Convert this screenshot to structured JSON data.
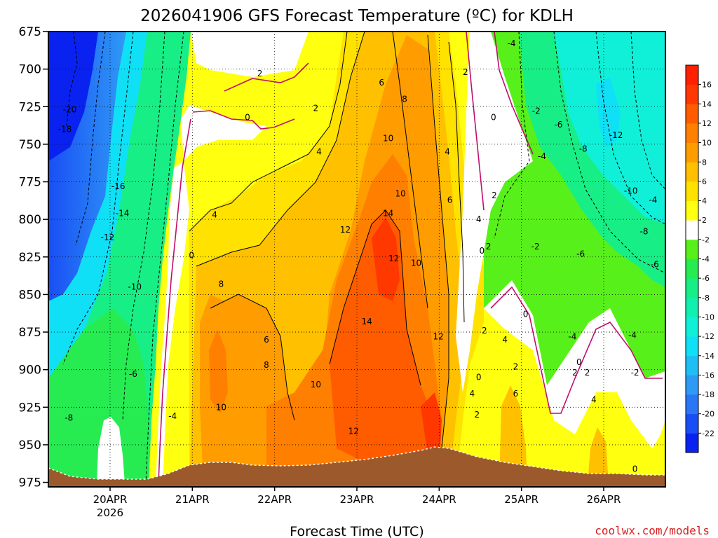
{
  "credit": "coolwx.com/models",
  "chart_data": {
    "type": "heatmap",
    "title": "2026041906 GFS Forecast Temperature (ºC) for KDLH",
    "xlabel": "Forecast Time (UTC)",
    "ylabel": "",
    "y_ticks": [
      675,
      700,
      725,
      750,
      775,
      800,
      825,
      850,
      875,
      900,
      925,
      950,
      975
    ],
    "ylim": [
      675,
      978
    ],
    "x_ticks": [
      {
        "day": 20,
        "label": "20APR",
        "sublabel": "2026"
      },
      {
        "day": 21,
        "label": "21APR",
        "sublabel": ""
      },
      {
        "day": 22,
        "label": "22APR",
        "sublabel": ""
      },
      {
        "day": 23,
        "label": "23APR",
        "sublabel": ""
      },
      {
        "day": 24,
        "label": "24APR",
        "sublabel": ""
      },
      {
        "day": 25,
        "label": "25APR",
        "sublabel": ""
      },
      {
        "day": 26,
        "label": "26APR",
        "sublabel": ""
      }
    ],
    "xlim": [
      19.25,
      26.75
    ],
    "colorbar": {
      "levels": [
        -22,
        -20,
        -18,
        -16,
        -14,
        -12,
        -10,
        -8,
        -6,
        -4,
        -2,
        2,
        4,
        6,
        8,
        10,
        12,
        14,
        16
      ],
      "colors": [
        "#0a22f0",
        "#1a4ef5",
        "#2b76f5",
        "#2f9af5",
        "#1fbef5",
        "#10e0f5",
        "#10f0d8",
        "#12f0b0",
        "#18ee86",
        "#26ec52",
        "#58f01a",
        "#ffffff",
        "#ffff10",
        "#ffe200",
        "#ffc000",
        "#ff9c00",
        "#ff8000",
        "#ff5c00",
        "#ff3800",
        "#ff2000"
      ]
    },
    "contour_labels": [
      {
        "x": 19.51,
        "p": 727,
        "v": "-20"
      },
      {
        "x": 19.45,
        "p": 740,
        "v": "-18"
      },
      {
        "x": 20.1,
        "p": 778,
        "v": "-16"
      },
      {
        "x": 20.15,
        "p": 796,
        "v": "-14"
      },
      {
        "x": 19.97,
        "p": 812,
        "v": "-12"
      },
      {
        "x": 20.3,
        "p": 845,
        "v": "-10"
      },
      {
        "x": 20.28,
        "p": 903,
        "v": "-6"
      },
      {
        "x": 19.5,
        "p": 932,
        "v": "-8"
      },
      {
        "x": 20.76,
        "p": 931,
        "v": "-4"
      },
      {
        "x": 20.99,
        "p": 824,
        "v": "0"
      },
      {
        "x": 21.27,
        "p": 797,
        "v": "4"
      },
      {
        "x": 21.35,
        "p": 843,
        "v": "8"
      },
      {
        "x": 21.9,
        "p": 880,
        "v": "6"
      },
      {
        "x": 21.9,
        "p": 897,
        "v": "8"
      },
      {
        "x": 21.35,
        "p": 925,
        "v": "10"
      },
      {
        "x": 21.82,
        "p": 703,
        "v": "2"
      },
      {
        "x": 21.67,
        "p": 732,
        "v": "0"
      },
      {
        "x": 22.5,
        "p": 726,
        "v": "2"
      },
      {
        "x": 22.54,
        "p": 755,
        "v": "4"
      },
      {
        "x": 23.3,
        "p": 709,
        "v": "6"
      },
      {
        "x": 23.58,
        "p": 720,
        "v": "8"
      },
      {
        "x": 23.38,
        "p": 746,
        "v": "10"
      },
      {
        "x": 22.86,
        "p": 807,
        "v": "12"
      },
      {
        "x": 23.38,
        "p": 796,
        "v": "14"
      },
      {
        "x": 23.53,
        "p": 783,
        "v": "10"
      },
      {
        "x": 23.45,
        "p": 826,
        "v": "12"
      },
      {
        "x": 23.72,
        "p": 829,
        "v": "10"
      },
      {
        "x": 23.12,
        "p": 868,
        "v": "14"
      },
      {
        "x": 22.5,
        "p": 910,
        "v": "10"
      },
      {
        "x": 22.96,
        "p": 941,
        "v": "12"
      },
      {
        "x": 23.99,
        "p": 878,
        "v": "12"
      },
      {
        "x": 24.1,
        "p": 755,
        "v": "4"
      },
      {
        "x": 24.13,
        "p": 787,
        "v": "6"
      },
      {
        "x": 24.32,
        "p": 702,
        "v": "2"
      },
      {
        "x": 24.48,
        "p": 800,
        "v": "4"
      },
      {
        "x": 24.66,
        "p": 732,
        "v": "0"
      },
      {
        "x": 24.67,
        "p": 784,
        "v": "2"
      },
      {
        "x": 24.52,
        "p": 821,
        "v": "0"
      },
      {
        "x": 24.6,
        "p": 818,
        "v": "2"
      },
      {
        "x": 24.4,
        "p": 916,
        "v": "4"
      },
      {
        "x": 24.48,
        "p": 905,
        "v": "0"
      },
      {
        "x": 24.46,
        "p": 930,
        "v": "2"
      },
      {
        "x": 24.55,
        "p": 874,
        "v": "2"
      },
      {
        "x": 24.8,
        "p": 880,
        "v": "4"
      },
      {
        "x": 24.93,
        "p": 898,
        "v": "2"
      },
      {
        "x": 24.93,
        "p": 916,
        "v": "6"
      },
      {
        "x": 25.05,
        "p": 863,
        "v": "0"
      },
      {
        "x": 24.88,
        "p": 683,
        "v": "-4"
      },
      {
        "x": 25.18,
        "p": 728,
        "v": "-2"
      },
      {
        "x": 25.25,
        "p": 758,
        "v": "-4"
      },
      {
        "x": 25.45,
        "p": 737,
        "v": "-6"
      },
      {
        "x": 25.75,
        "p": 753,
        "v": "-8"
      },
      {
        "x": 26.15,
        "p": 744,
        "v": "-12"
      },
      {
        "x": 26.33,
        "p": 781,
        "v": "-10"
      },
      {
        "x": 26.6,
        "p": 787,
        "v": "-4"
      },
      {
        "x": 26.49,
        "p": 808,
        "v": "-8"
      },
      {
        "x": 25.17,
        "p": 818,
        "v": "-2"
      },
      {
        "x": 25.72,
        "p": 823,
        "v": "-6"
      },
      {
        "x": 26.62,
        "p": 830,
        "v": "-6"
      },
      {
        "x": 25.62,
        "p": 878,
        "v": "-4"
      },
      {
        "x": 26.35,
        "p": 877,
        "v": "-4"
      },
      {
        "x": 25.7,
        "p": 895,
        "v": "0"
      },
      {
        "x": 25.65,
        "p": 902,
        "v": "2"
      },
      {
        "x": 25.8,
        "p": 902,
        "v": "2"
      },
      {
        "x": 26.38,
        "p": 902,
        "v": "-2"
      },
      {
        "x": 25.88,
        "p": 920,
        "v": "4"
      },
      {
        "x": 26.38,
        "p": 966,
        "v": "0"
      }
    ]
  }
}
